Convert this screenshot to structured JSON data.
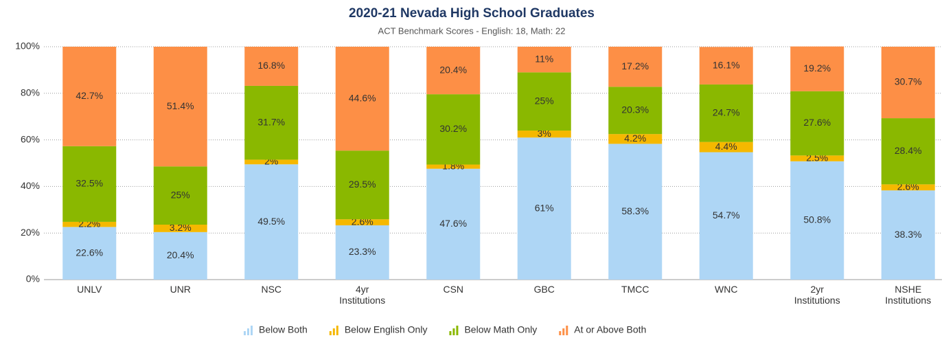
{
  "chart_data": {
    "type": "stacked_bar",
    "title": "2020-21 Nevada High School Graduates",
    "subtitle": "ACT Benchmark Scores - English: 18, Math: 22",
    "categories": [
      "UNLV",
      "UNR",
      "NSC",
      "4yr\nInstitutions",
      "CSN",
      "GBC",
      "TMCC",
      "WNC",
      "2yr\nInstitutions",
      "NSHE\nInstitutions"
    ],
    "series": [
      {
        "name": "Below Both",
        "color": "#aed6f5",
        "values": [
          22.6,
          20.4,
          49.5,
          23.3,
          47.6,
          61,
          58.3,
          54.7,
          50.8,
          38.3
        ],
        "value_labels": [
          "22.6%",
          "20.4%",
          "49.5%",
          "23.3%",
          "47.6%",
          "61%",
          "58.3%",
          "54.7%",
          "50.8%",
          "38.3%"
        ]
      },
      {
        "name": "Below English Only",
        "color": "#f5b800",
        "values": [
          2.2,
          3.2,
          2,
          2.6,
          1.8,
          3,
          4.2,
          4.4,
          2.5,
          2.6
        ],
        "value_labels": [
          "2.2%",
          "3.2%",
          "2%",
          "2.6%",
          "1.8%",
          "3%",
          "4.2%",
          "4.4%",
          "2.5%",
          "2.6%"
        ]
      },
      {
        "name": "Below Math Only",
        "color": "#8ab800",
        "values": [
          32.5,
          25,
          31.7,
          29.5,
          30.2,
          25,
          20.3,
          24.7,
          27.6,
          28.4
        ],
        "value_labels": [
          "32.5%",
          "25%",
          "31.7%",
          "29.5%",
          "30.2%",
          "25%",
          "20.3%",
          "24.7%",
          "27.6%",
          "28.4%"
        ]
      },
      {
        "name": "At or Above Both",
        "color": "#fd8f46",
        "values": [
          42.7,
          51.4,
          16.8,
          44.6,
          20.4,
          11,
          17.2,
          16.1,
          19.2,
          30.7
        ],
        "value_labels": [
          "42.7%",
          "51.4%",
          "16.8%",
          "44.6%",
          "20.4%",
          "11%",
          "17.2%",
          "16.1%",
          "19.2%",
          "30.7%"
        ]
      }
    ],
    "ylim": [
      0,
      100
    ],
    "yticks": [
      {
        "value": 0,
        "label": "0%"
      },
      {
        "value": 20,
        "label": "20%"
      },
      {
        "value": 40,
        "label": "40%"
      },
      {
        "value": 60,
        "label": "60%"
      },
      {
        "value": 80,
        "label": "80%"
      },
      {
        "value": 100,
        "label": "100%"
      }
    ],
    "grid": true,
    "legend": "bottom"
  }
}
